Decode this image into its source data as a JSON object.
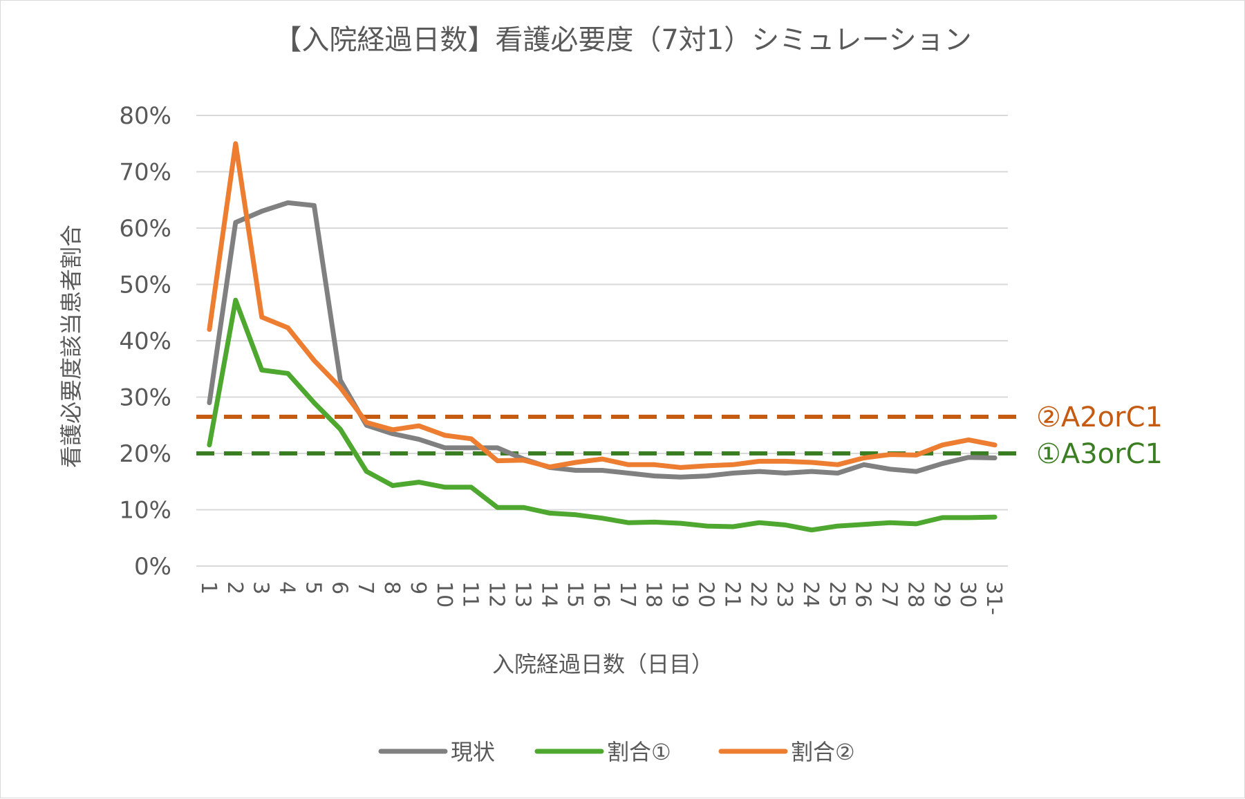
{
  "chart_data": {
    "type": "line",
    "title": "【入院経過日数】看護必要度（7対1）シミュレーション",
    "xlabel": "入院経過日数（日目）",
    "ylabel": "看護必要度該当患者割合",
    "ylim": [
      0,
      0.8
    ],
    "yticks": [
      "0%",
      "10%",
      "20%",
      "30%",
      "40%",
      "50%",
      "60%",
      "70%",
      "80%"
    ],
    "grid": true,
    "legend": "bottom",
    "categories": [
      "1",
      "2",
      "3",
      "4",
      "5",
      "6",
      "7",
      "8",
      "9",
      "10",
      "11",
      "12",
      "13",
      "14",
      "15",
      "16",
      "17",
      "18",
      "19",
      "20",
      "21",
      "22",
      "23",
      "24",
      "25",
      "26",
      "27",
      "28",
      "29",
      "30",
      "31-"
    ],
    "series": [
      {
        "name": "現状",
        "color": "#808080",
        "values": [
          0.29,
          0.61,
          0.63,
          0.645,
          0.64,
          0.33,
          0.25,
          0.235,
          0.225,
          0.21,
          0.21,
          0.21,
          0.19,
          0.175,
          0.17,
          0.17,
          0.165,
          0.16,
          0.158,
          0.16,
          0.165,
          0.168,
          0.165,
          0.168,
          0.165,
          0.18,
          0.172,
          0.168,
          0.182,
          0.193,
          0.192
        ]
      },
      {
        "name": "割合①",
        "color": "#4ea72e",
        "values": [
          0.215,
          0.472,
          0.348,
          0.342,
          0.29,
          0.243,
          0.168,
          0.143,
          0.149,
          0.14,
          0.14,
          0.104,
          0.104,
          0.094,
          0.091,
          0.085,
          0.077,
          0.078,
          0.076,
          0.071,
          0.07,
          0.077,
          0.073,
          0.064,
          0.071,
          0.074,
          0.077,
          0.075,
          0.086,
          0.086,
          0.087
        ]
      },
      {
        "name": "割合②",
        "color": "#ed7d31",
        "values": [
          0.42,
          0.75,
          0.442,
          0.423,
          0.365,
          0.317,
          0.255,
          0.242,
          0.249,
          0.232,
          0.226,
          0.187,
          0.188,
          0.176,
          0.184,
          0.19,
          0.18,
          0.18,
          0.175,
          0.178,
          0.18,
          0.186,
          0.186,
          0.184,
          0.18,
          0.192,
          0.198,
          0.197,
          0.215,
          0.224,
          0.215
        ]
      }
    ],
    "reference_lines": [
      {
        "label": "②A2orC1",
        "value": 0.265,
        "color": "#c55a11",
        "style": "dashed"
      },
      {
        "label": "①A3orC1",
        "value": 0.2,
        "color": "#3a7d22",
        "style": "dashed"
      }
    ]
  }
}
